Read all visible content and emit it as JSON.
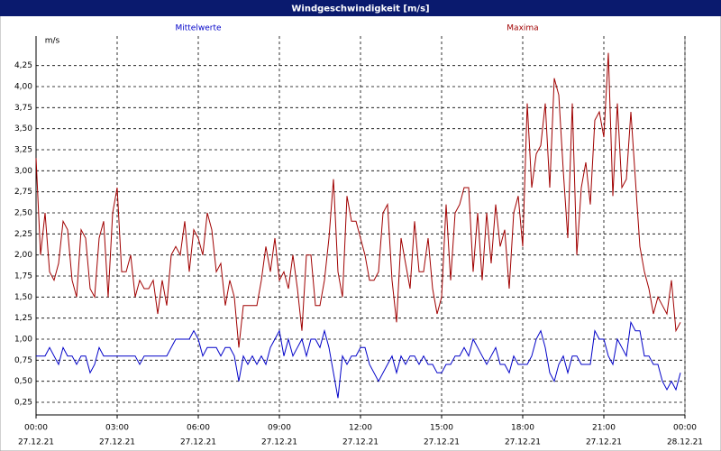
{
  "window_title": "Windgeschwindigkeit [m/s]",
  "chart_data": {
    "type": "line",
    "ylabel": "m/s",
    "x": [
      0,
      10,
      20,
      30,
      40,
      50,
      60,
      70,
      80,
      90,
      100,
      110,
      120,
      130,
      140,
      150,
      160,
      170,
      180,
      190,
      200,
      210,
      220,
      230,
      240,
      250,
      260,
      270,
      280,
      290,
      300,
      310,
      320,
      330,
      340,
      350,
      360,
      370,
      380,
      390,
      400,
      410,
      420,
      430,
      440,
      450,
      460,
      470,
      480,
      490,
      500,
      510,
      520,
      530,
      540,
      550,
      560,
      570,
      580,
      590,
      600,
      610,
      620,
      630,
      640,
      650,
      660,
      670,
      680,
      690,
      700,
      710,
      720,
      730,
      740,
      750,
      760,
      770,
      780,
      790,
      800,
      810,
      820,
      830,
      840,
      850,
      860,
      870,
      880,
      890,
      900,
      910,
      920,
      930,
      940,
      950,
      960,
      970,
      980,
      990,
      1000,
      1010,
      1020,
      1030,
      1040,
      1050,
      1060,
      1070,
      1080,
      1090,
      1100,
      1110,
      1120,
      1130,
      1140,
      1150,
      1160,
      1170,
      1180,
      1190,
      1200,
      1210,
      1220,
      1230,
      1240,
      1250,
      1260,
      1270,
      1280,
      1290,
      1300,
      1310,
      1320,
      1330,
      1340,
      1350,
      1360,
      1370,
      1380,
      1390,
      1400,
      1410,
      1420,
      1430
    ],
    "series": [
      {
        "name": "Mittelwerte",
        "color": "#0000c8",
        "values": [
          0.8,
          0.8,
          0.8,
          0.9,
          0.8,
          0.7,
          0.9,
          0.8,
          0.8,
          0.7,
          0.8,
          0.8,
          0.6,
          0.7,
          0.9,
          0.8,
          0.8,
          0.8,
          0.8,
          0.8,
          0.8,
          0.8,
          0.8,
          0.7,
          0.8,
          0.8,
          0.8,
          0.8,
          0.8,
          0.8,
          0.9,
          1.0,
          1.0,
          1.0,
          1.0,
          1.1,
          1.0,
          0.8,
          0.9,
          0.9,
          0.9,
          0.8,
          0.9,
          0.9,
          0.8,
          0.5,
          0.8,
          0.7,
          0.8,
          0.7,
          0.8,
          0.7,
          0.9,
          1.0,
          1.1,
          0.8,
          1.0,
          0.8,
          0.9,
          1.0,
          0.8,
          1.0,
          1.0,
          0.9,
          1.1,
          0.9,
          0.6,
          0.3,
          0.8,
          0.7,
          0.8,
          0.8,
          0.9,
          0.9,
          0.7,
          0.6,
          0.5,
          0.6,
          0.7,
          0.8,
          0.6,
          0.8,
          0.7,
          0.8,
          0.8,
          0.7,
          0.8,
          0.7,
          0.7,
          0.6,
          0.6,
          0.7,
          0.7,
          0.8,
          0.8,
          0.9,
          0.8,
          1.0,
          0.9,
          0.8,
          0.7,
          0.8,
          0.9,
          0.7,
          0.7,
          0.6,
          0.8,
          0.7,
          0.7,
          0.7,
          0.8,
          1.0,
          1.1,
          0.9,
          0.6,
          0.5,
          0.7,
          0.8,
          0.6,
          0.8,
          0.8,
          0.7,
          0.7,
          0.7,
          1.1,
          1.0,
          1.0,
          0.8,
          0.7,
          1.0,
          0.9,
          0.8,
          1.2,
          1.1,
          1.1,
          0.8,
          0.8,
          0.7,
          0.7,
          0.5,
          0.4,
          0.5,
          0.4,
          0.6
        ]
      },
      {
        "name": "Maxima",
        "color": "#a00000",
        "values": [
          3.15,
          2.0,
          2.5,
          1.8,
          1.7,
          1.9,
          2.4,
          2.3,
          1.7,
          1.5,
          2.3,
          2.2,
          1.6,
          1.5,
          2.2,
          2.4,
          1.5,
          2.5,
          2.8,
          1.8,
          1.8,
          2.0,
          1.5,
          1.7,
          1.6,
          1.6,
          1.7,
          1.3,
          1.7,
          1.4,
          2.0,
          2.1,
          2.0,
          2.4,
          1.8,
          2.3,
          2.2,
          2.0,
          2.5,
          2.3,
          1.8,
          1.9,
          1.4,
          1.7,
          1.5,
          0.9,
          1.4,
          1.4,
          1.4,
          1.4,
          1.7,
          2.1,
          1.8,
          2.2,
          1.7,
          1.8,
          1.6,
          2.0,
          1.6,
          1.1,
          2.0,
          2.0,
          1.4,
          1.4,
          1.7,
          2.2,
          2.9,
          1.8,
          1.5,
          2.7,
          2.4,
          2.4,
          2.2,
          2.0,
          1.7,
          1.7,
          1.8,
          2.5,
          2.6,
          1.7,
          1.2,
          2.2,
          1.9,
          1.6,
          2.4,
          1.8,
          1.8,
          2.2,
          1.6,
          1.3,
          1.5,
          2.6,
          1.7,
          2.5,
          2.6,
          2.8,
          2.8,
          1.8,
          2.5,
          1.7,
          2.5,
          1.9,
          2.6,
          2.1,
          2.3,
          1.6,
          2.5,
          2.7,
          2.1,
          3.8,
          2.8,
          3.2,
          3.3,
          3.8,
          2.8,
          4.1,
          3.9,
          3.0,
          2.2,
          3.8,
          2.0,
          2.8,
          3.1,
          2.6,
          3.6,
          3.7,
          3.4,
          4.4,
          2.7,
          3.8,
          2.8,
          2.9,
          3.7,
          2.9,
          2.1,
          1.8,
          1.6,
          1.3,
          1.5,
          1.4,
          1.3,
          1.7,
          1.1,
          1.2
        ]
      }
    ],
    "xlim": [
      0,
      1440
    ],
    "xticks": [
      {
        "value": 0,
        "label": "00:00"
      },
      {
        "value": 180,
        "label": "03:00"
      },
      {
        "value": 360,
        "label": "06:00"
      },
      {
        "value": 540,
        "label": "09:00"
      },
      {
        "value": 720,
        "label": "12:00"
      },
      {
        "value": 900,
        "label": "15:00"
      },
      {
        "value": 1080,
        "label": "18:00"
      },
      {
        "value": 1260,
        "label": "21:00"
      },
      {
        "value": 1440,
        "label": "00:00"
      }
    ],
    "xtick_dates": [
      "27.12.21",
      "27.12.21",
      "27.12.21",
      "27.12.21",
      "27.12.21",
      "27.12.21",
      "27.12.21",
      "27.12.21",
      "28.12.21"
    ],
    "ylim": [
      0.1,
      4.6
    ],
    "yticks": [
      {
        "value": 0.25,
        "label": "0,25"
      },
      {
        "value": 0.5,
        "label": "0,50"
      },
      {
        "value": 0.75,
        "label": "0,75"
      },
      {
        "value": 1.0,
        "label": "1,00"
      },
      {
        "value": 1.25,
        "label": "1,25"
      },
      {
        "value": 1.5,
        "label": "1,50"
      },
      {
        "value": 1.75,
        "label": "1,75"
      },
      {
        "value": 2.0,
        "label": "2,00"
      },
      {
        "value": 2.25,
        "label": "2,25"
      },
      {
        "value": 2.5,
        "label": "2,50"
      },
      {
        "value": 2.75,
        "label": "2,75"
      },
      {
        "value": 3.0,
        "label": "3,00"
      },
      {
        "value": 3.25,
        "label": "3,25"
      },
      {
        "value": 3.5,
        "label": "3,50"
      },
      {
        "value": 3.75,
        "label": "3,75"
      },
      {
        "value": 4.0,
        "label": "4,00"
      },
      {
        "value": 4.25,
        "label": "4,25"
      }
    ],
    "grid": true
  }
}
